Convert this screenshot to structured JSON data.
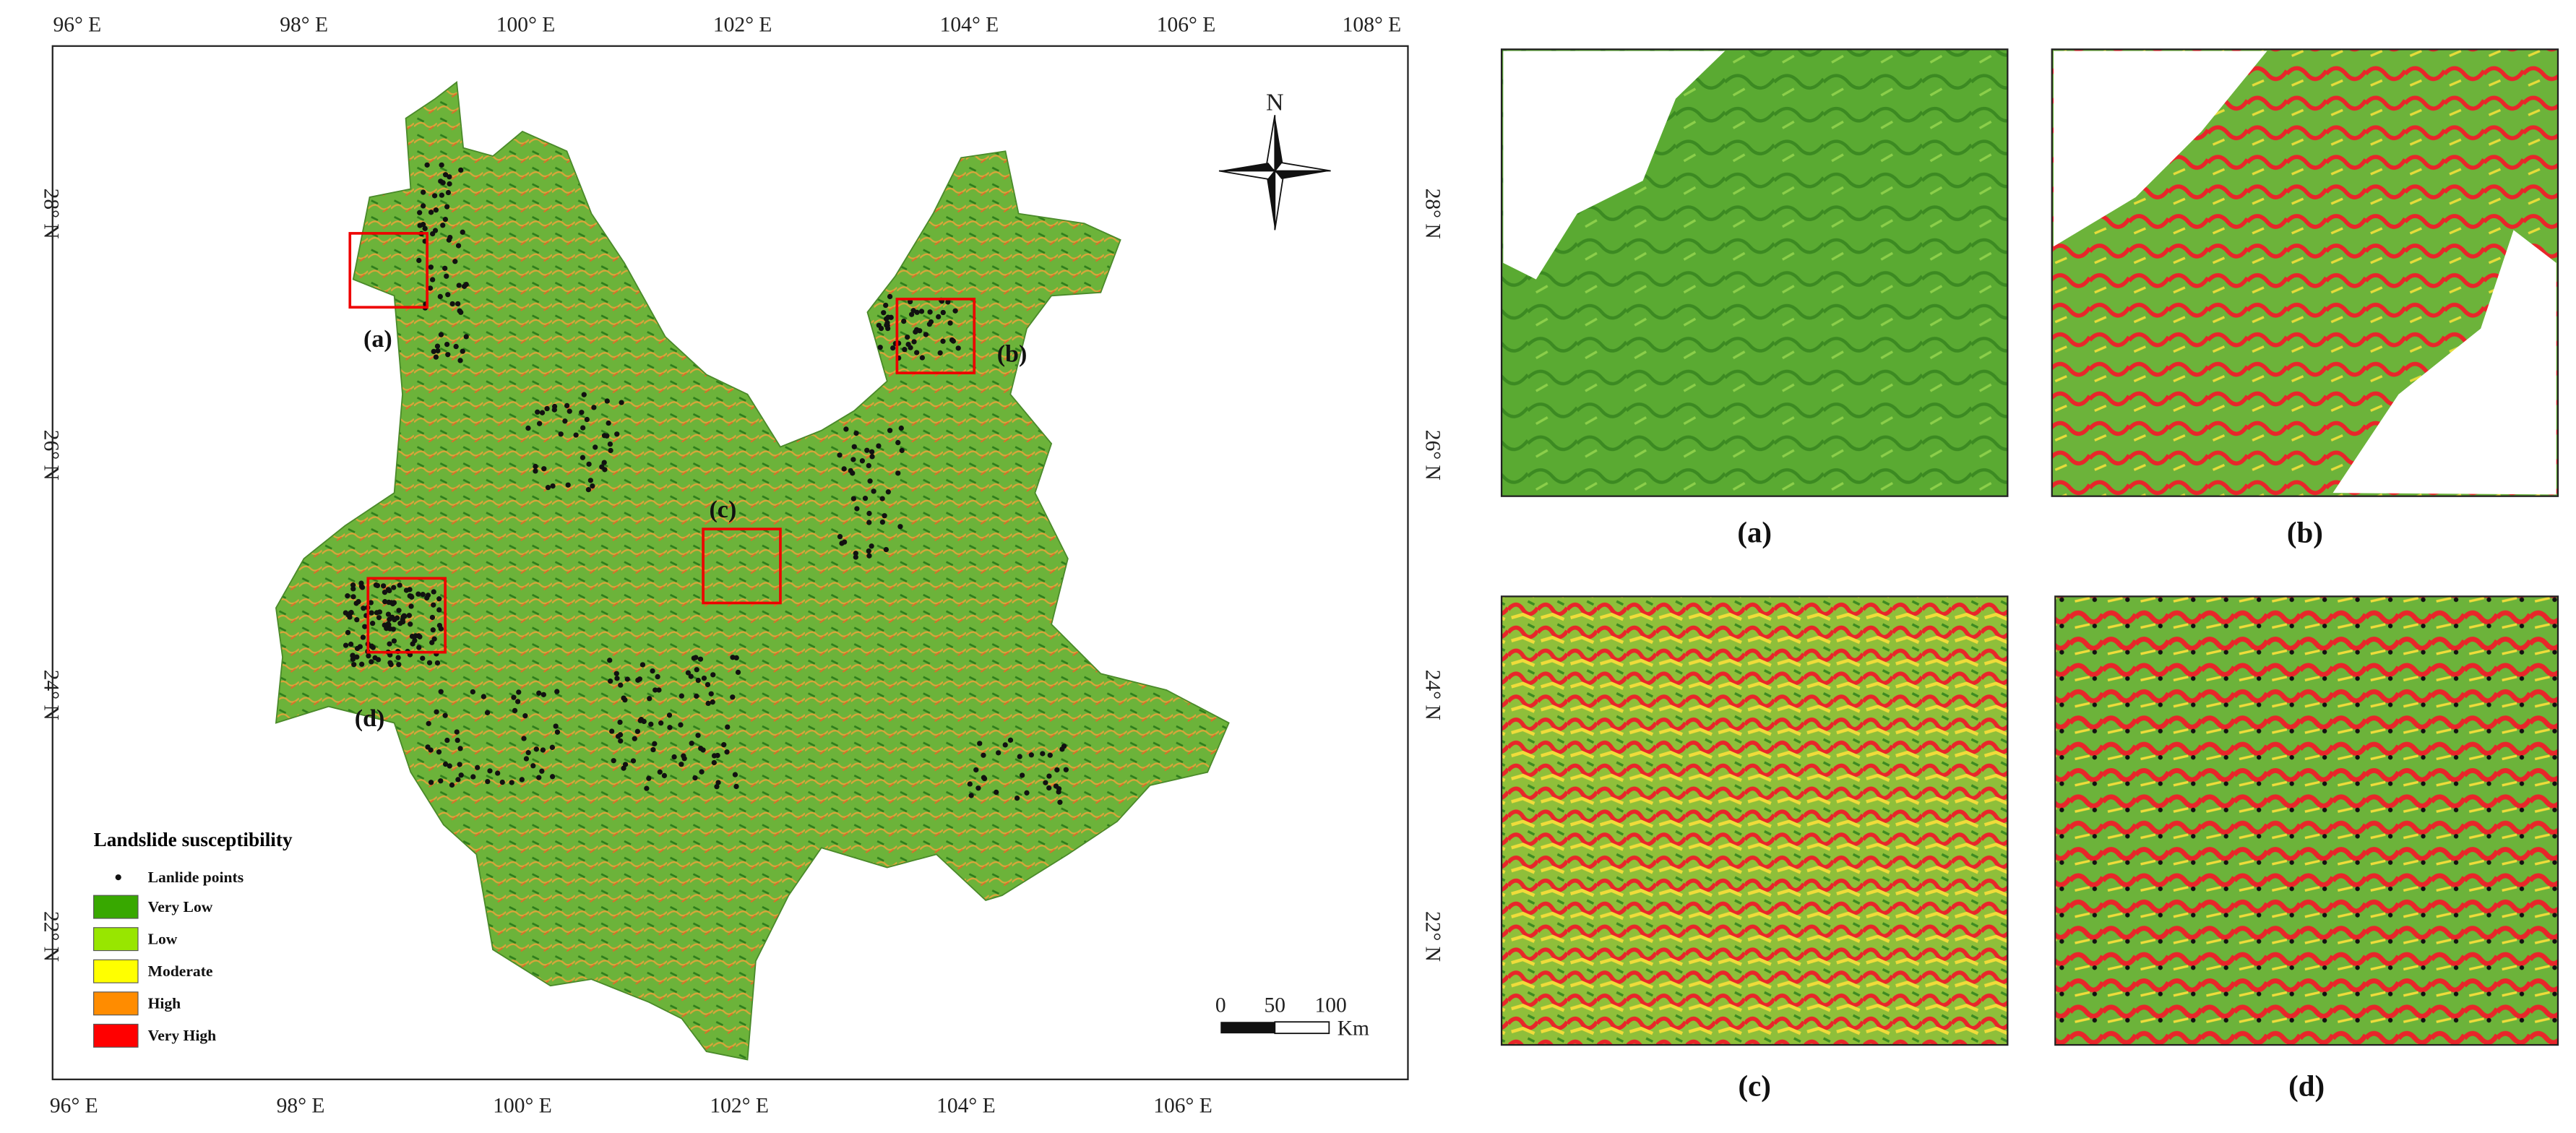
{
  "map": {
    "lon_labels": [
      "96° E",
      "98° E",
      "100° E",
      "102° E",
      "104° E",
      "106° E",
      "108° E"
    ],
    "lat_labels": [
      "28° N",
      "26° N",
      "24° N",
      "22° N"
    ],
    "north_label": "N",
    "scale": {
      "ticks": [
        "0",
        "50",
        "100"
      ],
      "unit": "Km"
    },
    "legend": {
      "title": "Landslide susceptibility",
      "points_label": "Lanlide points",
      "classes": [
        {
          "label": "Very Low",
          "color": "#38a800"
        },
        {
          "label": "Low",
          "color": "#98e600"
        },
        {
          "label": "Moderate",
          "color": "#ffff00"
        },
        {
          "label": "High",
          "color": "#ff8c00"
        },
        {
          "label": "Very High",
          "color": "#ff0000"
        }
      ]
    },
    "boxes": [
      {
        "label": "(a)"
      },
      {
        "label": "(b)"
      },
      {
        "label": "(c)"
      },
      {
        "label": "(d)"
      }
    ]
  },
  "insets": [
    {
      "label": "(a)"
    },
    {
      "label": "(b)"
    },
    {
      "label": "(c)"
    },
    {
      "label": "(d)"
    }
  ]
}
